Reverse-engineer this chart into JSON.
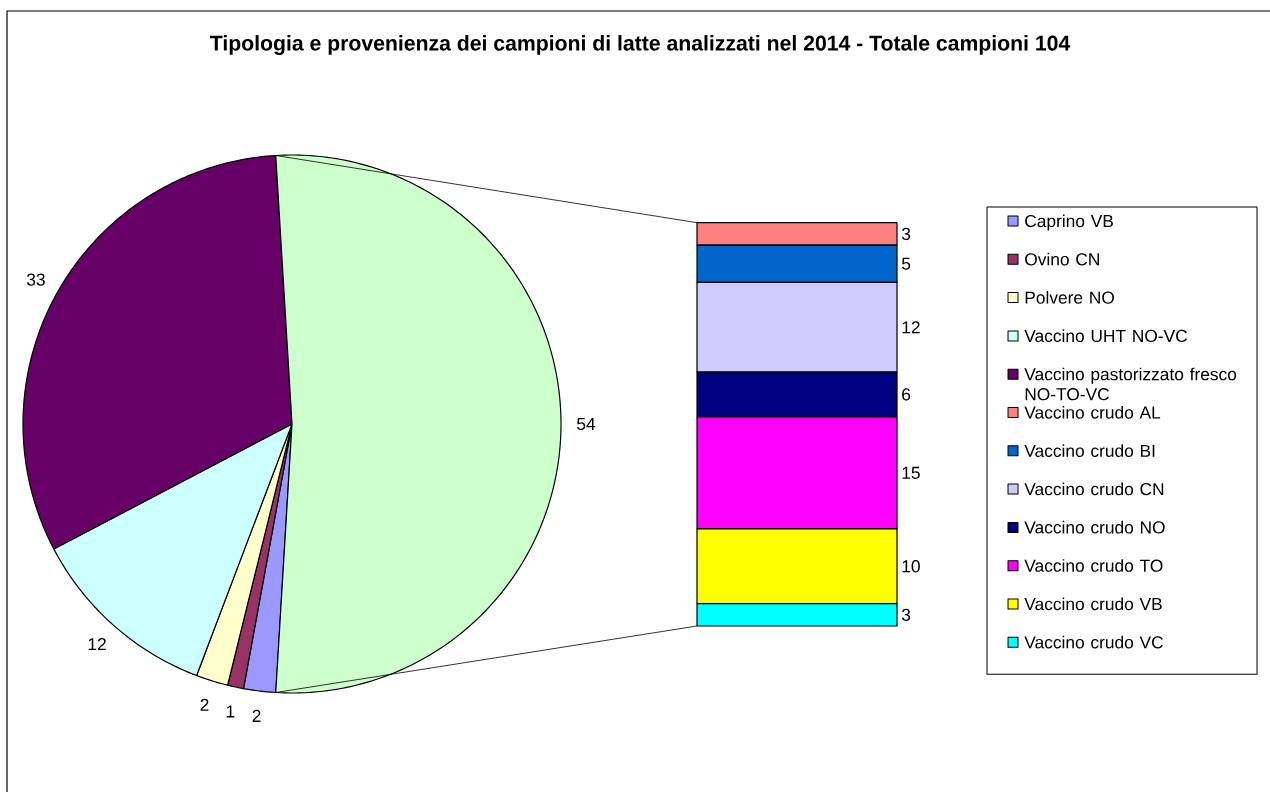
{
  "chart_data": [
    {
      "type": "pie",
      "title": "Tipologia e provenienza dei campioni di latte analizzati nel 2014 - Totale campioni 104",
      "categories": [
        "Caprino VB",
        "Ovino CN",
        "Polvere NO",
        "Vaccino UHT NO-VC",
        "Vaccino pastorizzato fresco NO-TO-VC",
        null
      ],
      "values": [
        2,
        1,
        2,
        12,
        33,
        54
      ],
      "colors": [
        "#9999ff",
        "#993366",
        "#ffffcc",
        "#ccffff",
        "#660066",
        "#ccffcc"
      ],
      "data_labels": true,
      "legend": "right"
    },
    {
      "type": "bar",
      "stacked": true,
      "categories": [
        null
      ],
      "series": [
        {
          "name": "Vaccino crudo VC",
          "color": "#00ffff",
          "values": [
            3
          ]
        },
        {
          "name": "Vaccino crudo VB",
          "color": "#ffff00",
          "values": [
            10
          ]
        },
        {
          "name": "Vaccino crudo TO",
          "color": "#ff00ff",
          "values": [
            15
          ]
        },
        {
          "name": "Vaccino crudo NO",
          "color": "#000080",
          "values": [
            6
          ]
        },
        {
          "name": "Vaccino crudo CN",
          "color": "#ccccff",
          "values": [
            12
          ]
        },
        {
          "name": "Vaccino crudo BI",
          "color": "#0066cc",
          "values": [
            5
          ]
        },
        {
          "name": "Vaccino crudo AL",
          "color": "#ff8080",
          "values": [
            3
          ]
        }
      ],
      "data_labels": true,
      "legend": "right"
    }
  ]
}
